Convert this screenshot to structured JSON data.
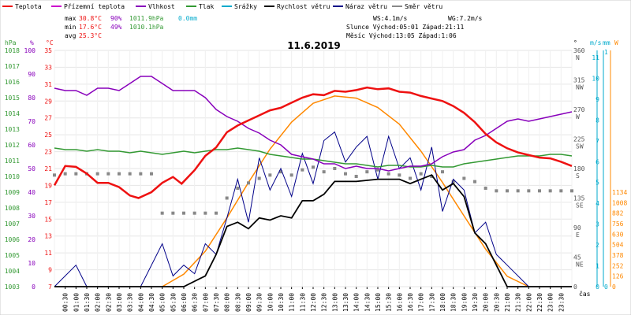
{
  "chart_data": {
    "type": "line",
    "title": "11.6.2019",
    "legend": [
      {
        "name": "Teplota",
        "color": "#ee1111"
      },
      {
        "name": "Přízemní teplota",
        "color": "#cc00cc"
      },
      {
        "name": "Vlhkost",
        "color": "#8800bb"
      },
      {
        "name": "Tlak",
        "color": "#339933"
      },
      {
        "name": "Srážky",
        "color": "#00aacc"
      },
      {
        "name": "Rychlost větru",
        "color": "#000000"
      },
      {
        "name": "Náraz větru",
        "color": "#000088"
      },
      {
        "name": "Směr větru",
        "color": "#888888"
      }
    ],
    "stats": {
      "max": {
        "label": "max",
        "temp": "30.8°C",
        "hum": "90%",
        "press": "1011.9hPa",
        "rain": "0.0mm"
      },
      "min": {
        "label": "min",
        "temp": "17.6°C",
        "hum": "49%",
        "press": "1010.1hPa"
      },
      "avg": {
        "label": "avg",
        "temp": "25.3°C"
      }
    },
    "info": {
      "ws": "WS:4.1m/s",
      "wg": "WG:7.2m/s",
      "sun": "Slunce Východ:05:01  Západ:21:11",
      "moon": "Měsíc  Východ:13:05  Západ:1:06"
    },
    "axes": {
      "hpa": {
        "label": "hPa",
        "ticks": [
          "1018",
          "1017",
          "1016",
          "1015",
          "1014",
          "1013",
          "1012",
          "1011",
          "1010",
          "1009",
          "1008",
          "1007",
          "1006",
          "1005",
          "1004",
          "1003"
        ]
      },
      "pct": {
        "label": "%",
        "ticks": [
          "100",
          "90",
          "80",
          "70",
          "60",
          "50",
          "40",
          "30",
          "20",
          "10",
          "0"
        ]
      },
      "temp": {
        "label": "°C",
        "ticks": [
          "35",
          "33",
          "31",
          "29",
          "27",
          "25",
          "23",
          "21",
          "19",
          "17",
          "15",
          "13",
          "11",
          "9",
          "7"
        ]
      },
      "dir": {
        "label": "°",
        "ticks": [
          "360",
          "315",
          "270",
          "225",
          "180",
          "135",
          "90",
          "45",
          "0"
        ],
        "compass": [
          "N",
          "NW",
          "W",
          "SW",
          "S",
          "SE",
          "E",
          "NE",
          ""
        ]
      },
      "ms": {
        "label": "m/s",
        "ticks": [
          "11",
          "10",
          "9",
          "8",
          "7",
          "6",
          "5",
          "4",
          "3",
          "2",
          "1",
          "0"
        ]
      },
      "mm": {
        "label": "mm",
        "ticks": [
          "1",
          "0"
        ]
      },
      "wm2": {
        "label": "W",
        "ticks": [
          "1134",
          "1008",
          "882",
          "756",
          "630",
          "504",
          "378",
          "252",
          "126",
          "0"
        ]
      },
      "x": {
        "label": "čas",
        "ticks": [
          "00:30",
          "01:00",
          "01:30",
          "02:00",
          "02:30",
          "03:00",
          "03:30",
          "04:00",
          "04:30",
          "05:00",
          "05:30",
          "06:00",
          "06:30",
          "07:00",
          "07:30",
          "08:00",
          "08:30",
          "09:00",
          "09:30",
          "10:00",
          "10:30",
          "11:00",
          "11:30",
          "12:00",
          "12:30",
          "13:00",
          "13:30",
          "14:00",
          "14:30",
          "15:00",
          "15:30",
          "16:00",
          "16:30",
          "17:00",
          "17:30",
          "18:00",
          "18:30",
          "19:00",
          "19:30",
          "20:00",
          "20:30",
          "21:00",
          "21:30",
          "22:00",
          "22:30",
          "23:00",
          "23:30"
        ]
      }
    },
    "series": [
      {
        "name": "Teplota",
        "unit": "°C",
        "x": [
          0.0,
          0.5,
          1.0,
          1.5,
          2.0,
          2.5,
          3.0,
          3.5,
          3.9,
          4.5,
          5.0,
          5.5,
          5.9,
          6.5,
          7.0,
          7.5,
          8.0,
          8.5,
          9.0,
          9.5,
          10.0,
          10.5,
          11.0,
          11.5,
          12.0,
          12.5,
          13.0,
          13.5,
          14.0,
          14.5,
          15.0,
          15.5,
          16.0,
          16.5,
          17.0,
          17.5,
          18.0,
          18.5,
          19.0,
          19.5,
          20.0,
          20.5,
          21.0,
          21.5,
          22.0,
          22.5,
          23.0,
          23.5,
          24.0
        ],
        "y": [
          19.0,
          21.3,
          21.2,
          20.4,
          19.3,
          19.3,
          18.8,
          17.8,
          17.5,
          18.2,
          19.3,
          20.0,
          19.2,
          20.8,
          22.5,
          23.5,
          25.3,
          26.1,
          26.7,
          27.3,
          27.9,
          28.2,
          28.8,
          29.4,
          29.8,
          29.7,
          30.2,
          30.1,
          30.3,
          30.6,
          30.4,
          30.5,
          30.1,
          30.0,
          29.6,
          29.3,
          29.0,
          28.4,
          27.6,
          26.5,
          25.1,
          24.1,
          23.4,
          22.9,
          22.6,
          22.3,
          22.2,
          21.8,
          21.3
        ]
      },
      {
        "name": "Vlhkost",
        "unit": "%",
        "x": [
          0.0,
          0.5,
          1.0,
          1.5,
          2.0,
          2.5,
          3.0,
          3.5,
          4.0,
          4.5,
          5.0,
          5.5,
          6.0,
          6.5,
          7.0,
          7.5,
          8.0,
          8.5,
          9.0,
          9.5,
          10.0,
          10.5,
          11.0,
          11.5,
          12.0,
          12.5,
          13.0,
          13.5,
          14.0,
          14.5,
          15.0,
          15.5,
          16.0,
          16.5,
          17.0,
          17.5,
          18.0,
          18.5,
          19.0,
          19.5,
          20.0,
          20.5,
          21.0,
          21.5,
          22.0,
          22.5,
          23.0,
          23.5,
          24.0
        ],
        "y": [
          84,
          83,
          83,
          81,
          84,
          84,
          83,
          86,
          89,
          89,
          86,
          83,
          83,
          83,
          80,
          75,
          72,
          70,
          67,
          65,
          62,
          60,
          56,
          55,
          54,
          52,
          52,
          50,
          51,
          50,
          50,
          49,
          50,
          51,
          51,
          52,
          55,
          57,
          58,
          62,
          64,
          67,
          70,
          71,
          70,
          71,
          72,
          73,
          74
        ]
      },
      {
        "name": "Tlak",
        "unit": "hPa",
        "x": [
          0.0,
          0.5,
          1.0,
          1.5,
          2.0,
          2.5,
          3.0,
          3.5,
          4.0,
          4.5,
          5.0,
          5.5,
          6.0,
          6.5,
          7.0,
          7.5,
          8.0,
          8.5,
          9.0,
          9.5,
          10.0,
          10.5,
          11.0,
          11.5,
          12.0,
          12.5,
          13.0,
          13.5,
          14.0,
          14.5,
          15.0,
          15.5,
          16.0,
          16.5,
          17.0,
          17.5,
          18.0,
          18.5,
          19.0,
          19.5,
          20.0,
          20.5,
          21.0,
          21.5,
          22.0,
          22.5,
          23.0,
          23.5,
          24.0
        ],
        "y": [
          1011.8,
          1011.7,
          1011.7,
          1011.6,
          1011.7,
          1011.6,
          1011.6,
          1011.5,
          1011.6,
          1011.5,
          1011.4,
          1011.5,
          1011.6,
          1011.5,
          1011.6,
          1011.7,
          1011.7,
          1011.8,
          1011.7,
          1011.6,
          1011.4,
          1011.3,
          1011.2,
          1011.1,
          1011.1,
          1011.0,
          1010.9,
          1010.8,
          1010.8,
          1010.7,
          1010.6,
          1010.7,
          1010.7,
          1010.6,
          1010.6,
          1010.7,
          1010.6,
          1010.6,
          1010.8,
          1010.9,
          1011.0,
          1011.1,
          1011.2,
          1011.3,
          1011.3,
          1011.3,
          1011.4,
          1011.4,
          1011.3
        ]
      },
      {
        "name": "Rychlost větru",
        "unit": "m/s",
        "x": [
          0.0,
          5.5,
          6.0,
          7.0,
          7.5,
          8.0,
          8.5,
          9.0,
          9.5,
          10.0,
          10.5,
          11.0,
          11.5,
          12.0,
          12.5,
          13.0,
          14.0,
          15.0,
          16.0,
          16.5,
          17.0,
          17.5,
          18.0,
          18.5,
          19.0,
          19.5,
          20.0,
          20.5,
          21.0,
          24.0
        ],
        "y": [
          0.0,
          0.0,
          0.0,
          0.5,
          1.5,
          2.8,
          3.0,
          2.7,
          3.2,
          3.1,
          3.3,
          3.2,
          4.0,
          4.0,
          4.3,
          4.9,
          4.9,
          5.0,
          5.0,
          4.8,
          5.0,
          5.2,
          4.5,
          4.8,
          4.2,
          2.5,
          2.0,
          1.0,
          0.0,
          0.0
        ]
      },
      {
        "name": "Náraz větru",
        "unit": "m/s",
        "x": [
          0.0,
          1.0,
          1.5,
          2.0,
          4.0,
          5.0,
          5.5,
          6.0,
          6.5,
          7.0,
          7.5,
          8.0,
          8.5,
          9.0,
          9.5,
          10.0,
          10.5,
          11.0,
          11.5,
          12.0,
          12.5,
          13.0,
          13.5,
          14.0,
          14.5,
          15.0,
          15.5,
          16.0,
          16.5,
          17.0,
          17.5,
          18.0,
          18.5,
          19.0,
          19.5,
          20.0,
          20.5,
          21.0,
          22.0,
          24.0
        ],
        "y": [
          0.0,
          1.0,
          0.0,
          0.0,
          0.0,
          2.0,
          0.5,
          1.0,
          0.6,
          2.0,
          1.5,
          3.2,
          5.0,
          3.0,
          6.0,
          4.5,
          5.5,
          4.2,
          6.2,
          4.8,
          6.8,
          7.2,
          5.8,
          6.5,
          7.0,
          5.0,
          7.0,
          5.5,
          6.0,
          4.5,
          6.5,
          3.5,
          5.0,
          4.5,
          2.5,
          3.0,
          1.5,
          1.0,
          0.0,
          0.0
        ]
      },
      {
        "name": "Směr větru",
        "unit": "°",
        "x": [
          0.0,
          0.5,
          1.0,
          1.5,
          2.0,
          2.5,
          3.0,
          3.5,
          4.0,
          4.5,
          5.0,
          5.5,
          6.0,
          6.5,
          7.0,
          7.5,
          8.0,
          8.5,
          9.0,
          9.5,
          10.0,
          10.5,
          11.0,
          11.5,
          12.0,
          12.5,
          13.0,
          13.5,
          14.0,
          14.5,
          15.0,
          15.5,
          16.0,
          16.5,
          17.0,
          17.5,
          18.0,
          18.5,
          19.0,
          19.5,
          20.0,
          20.5,
          21.0,
          21.5,
          22.0,
          22.5,
          23.0,
          23.5,
          24.0
        ],
        "y": [
          170,
          172,
          172,
          172,
          172,
          172,
          172,
          172,
          172,
          172,
          112,
          112,
          112,
          112,
          112,
          112,
          135,
          150,
          158,
          165,
          170,
          175,
          170,
          178,
          182,
          175,
          180,
          172,
          168,
          175,
          178,
          172,
          170,
          165,
          172,
          168,
          175,
          160,
          165,
          160,
          150,
          146,
          146,
          146,
          146,
          146,
          146,
          146,
          146
        ]
      },
      {
        "name": "Sluneční záření",
        "unit": "W",
        "x": [
          5.0,
          6.0,
          7.0,
          8.0,
          9.0,
          10.0,
          11.0,
          12.0,
          13.0,
          14.0,
          15.0,
          16.0,
          17.0,
          18.0,
          19.0,
          20.0,
          21.0,
          22.0
        ],
        "y": [
          0,
          60,
          170,
          330,
          500,
          660,
          790,
          880,
          915,
          905,
          860,
          780,
          650,
          500,
          340,
          180,
          50,
          0
        ]
      }
    ]
  }
}
